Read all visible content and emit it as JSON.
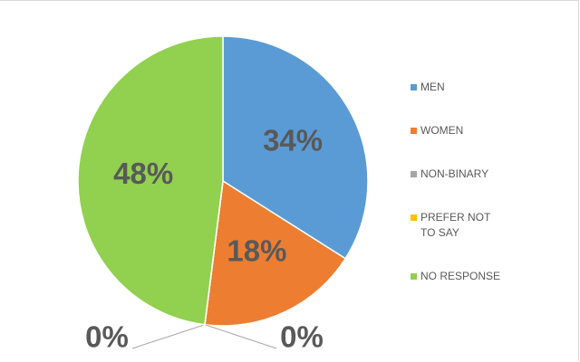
{
  "chart_data": {
    "type": "pie",
    "categories": [
      "MEN",
      "WOMEN",
      "NON-BINARY",
      "PREFER NOT TO SAY",
      "NO RESPONSE"
    ],
    "values": [
      34,
      18,
      0,
      0,
      48
    ],
    "value_labels": [
      "34%",
      "18%",
      "0%",
      "0%",
      "48%"
    ],
    "colors": [
      "#5b9bd5",
      "#ed7d31",
      "#a5a5a5",
      "#ffc000",
      "#92d050"
    ],
    "legend": "right"
  }
}
